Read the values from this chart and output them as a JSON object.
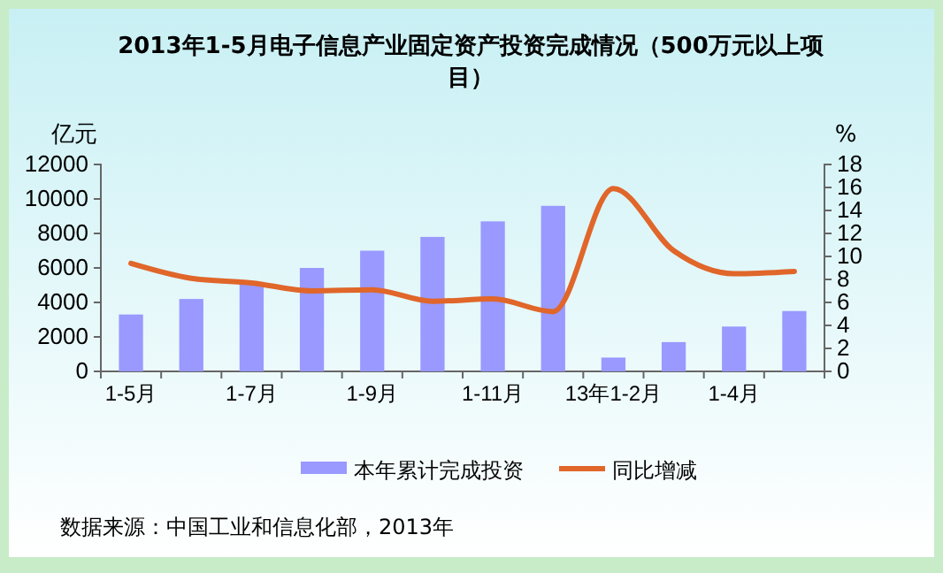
{
  "chart_data": {
    "type": "bar",
    "title": "2013年1-5月电子信息产业固定资产投资完成情况（500万元以上项目）",
    "ylabel": "亿元",
    "y2label": "%",
    "categories": [
      "1-5月",
      null,
      "1-7月",
      null,
      "1-9月",
      null,
      "1-11月",
      null,
      "13年1-2月",
      null,
      "1-4月",
      null
    ],
    "series": [
      {
        "name": "本年累计完成投资",
        "color": "#9999ff",
        "values": [
          3300,
          4200,
          5100,
          6000,
          7000,
          7800,
          8700,
          9600,
          800,
          1700,
          2600,
          3500
        ]
      },
      {
        "name": "同比增减",
        "type": "line",
        "axis": "y2",
        "color": "#e0662a",
        "values": [
          9.4,
          8.1,
          7.7,
          7.0,
          7.1,
          6.1,
          6.3,
          5.2,
          15.9,
          10.5,
          8.5,
          8.7
        ]
      }
    ],
    "ylim": [
      0,
      12000
    ],
    "yticks": [
      0,
      2000,
      4000,
      6000,
      8000,
      10000,
      12000
    ],
    "y2lim": [
      0,
      18
    ],
    "y2ticks": [
      0,
      2,
      4,
      6,
      8,
      10,
      12,
      14,
      16,
      18
    ],
    "legend": "bottom",
    "grid": false,
    "marker": "none",
    "line_style": "solid",
    "annotations": [
      "数据来源：中国工业和信息化部，2013年"
    ]
  }
}
